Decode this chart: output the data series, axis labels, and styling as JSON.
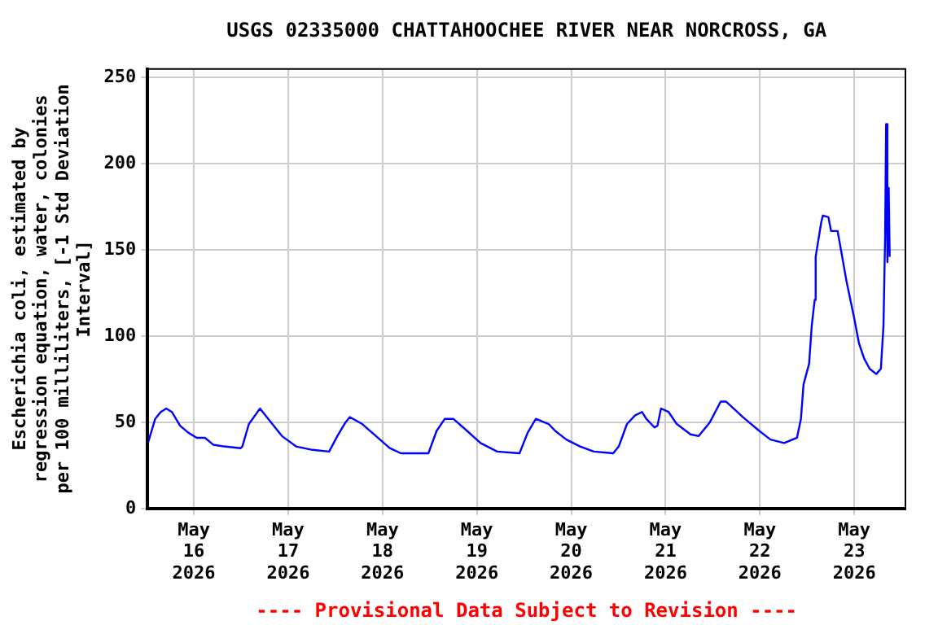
{
  "chart_data": {
    "type": "line",
    "title": "USGS 02335000 CHATTAHOOCHEE RIVER NEAR NORCROSS, GA",
    "ylabel": "Escherichia coli, estimated by regression equation, water, colonies per 100 milliliters, [-1 Std Deviation Interval]",
    "annotations": [
      "---- Provisional Data Subject to Revision ----"
    ],
    "x": [
      "2026-05-15T12:20",
      "2026-05-15T14:10",
      "2026-05-15T15:35",
      "2026-05-15T17:00",
      "2026-05-15T18:25",
      "2026-05-15T20:30",
      "2026-05-15T22:35",
      "2026-05-16T00:45",
      "2026-05-16T02:50",
      "2026-05-16T04:55",
      "2026-05-16T07:40",
      "2026-05-16T11:55",
      "2026-05-16T12:20",
      "2026-05-16T14:00",
      "2026-05-16T16:50",
      "2026-05-16T18:55",
      "2026-05-16T22:25",
      "2026-05-17T02:00",
      "2026-05-17T06:10",
      "2026-05-17T10:25",
      "2026-05-17T12:30",
      "2026-05-17T14:35",
      "2026-05-17T15:40",
      "2026-05-17T18:50",
      "2026-05-17T22:20",
      "2026-05-18T01:50",
      "2026-05-18T04:40",
      "2026-05-18T09:35",
      "2026-05-18T11:40",
      "2026-05-18T13:45",
      "2026-05-18T15:50",
      "2026-05-18T18:00",
      "2026-05-18T21:30",
      "2026-05-19T00:55",
      "2026-05-19T05:10",
      "2026-05-19T10:50",
      "2026-05-19T12:55",
      "2026-05-19T15:00",
      "2026-05-19T18:15",
      "2026-05-19T19:55",
      "2026-05-19T22:45",
      "2026-05-20T02:15",
      "2026-05-20T05:45",
      "2026-05-20T10:40",
      "2026-05-20T12:05",
      "2026-05-20T14:10",
      "2026-05-20T16:15",
      "2026-05-20T18:00",
      "2026-05-20T19:05",
      "2026-05-20T21:10",
      "2026-05-20T21:55",
      "2026-05-20T22:50",
      "2026-05-21T00:45",
      "2026-05-21T02:50",
      "2026-05-21T06:20",
      "2026-05-21T08:25",
      "2026-05-21T11:15",
      "2026-05-21T14:00",
      "2026-05-21T15:25",
      "2026-05-21T19:40",
      "2026-05-21T23:50",
      "2026-05-22T02:40",
      "2026-05-22T06:10",
      "2026-05-22T09:25",
      "2026-05-22T10:25",
      "2026-05-22T11:05",
      "2026-05-22T12:30",
      "2026-05-22T13:10",
      "2026-05-22T13:55",
      "2026-05-22T14:10",
      "2026-05-22T14:35",
      "2026-05-22T15:35",
      "2026-05-22T16:00",
      "2026-05-22T17:25",
      "2026-05-22T18:05",
      "2026-05-22T19:45",
      "2026-05-22T20:55",
      "2026-05-22T22:00",
      "2026-05-22T23:00",
      "2026-05-23T00:00",
      "2026-05-23T01:10",
      "2026-05-23T02:30",
      "2026-05-23T03:55",
      "2026-05-23T05:35",
      "2026-05-23T06:45",
      "2026-05-23T07:25",
      "2026-05-23T07:50",
      "2026-05-23T08:05",
      "2026-05-23T08:25",
      "2026-05-23T08:45",
      "2026-05-23T09:00"
    ],
    "series": [
      {
        "color": "#0000ff",
        "values": [
          38,
          52,
          56,
          58,
          56,
          48,
          44,
          41,
          41,
          37,
          36,
          35,
          36,
          49,
          58,
          52,
          42,
          36,
          34,
          33,
          42,
          50,
          53,
          49,
          42,
          35,
          32,
          32,
          32,
          45,
          52,
          52,
          45,
          38,
          33,
          32,
          44,
          52,
          49,
          45,
          40,
          36,
          33,
          32,
          36,
          49,
          54,
          56,
          52,
          47,
          48,
          58,
          56,
          49,
          43,
          42,
          50,
          62,
          62,
          53,
          45,
          40,
          38,
          41,
          52,
          72,
          84,
          106,
          121,
          146,
          152,
          166,
          170,
          169,
          161,
          161,
          146,
          132,
          121,
          110,
          96,
          87,
          81,
          78,
          81,
          106,
          158,
          223,
          143,
          186,
          146
        ]
      }
    ],
    "xlim": [
      "2026-05-15T12:15",
      "2026-05-23T13:00"
    ],
    "xticks": [
      {
        "value": "2026-05-16",
        "label": "May 16 2026"
      },
      {
        "value": "2026-05-17",
        "label": "May 17 2026"
      },
      {
        "value": "2026-05-18",
        "label": "May 18 2026"
      },
      {
        "value": "2026-05-19",
        "label": "May 19 2026"
      },
      {
        "value": "2026-05-20",
        "label": "May 20 2026"
      },
      {
        "value": "2026-05-21",
        "label": "May 21 2026"
      },
      {
        "value": "2026-05-22",
        "label": "May 22 2026"
      },
      {
        "value": "2026-05-23",
        "label": "May 23 2026"
      }
    ],
    "ylim": [
      0,
      255
    ],
    "yticks": [
      0,
      50,
      100,
      150,
      200,
      250
    ],
    "grid": true,
    "legend": false,
    "marker": "none",
    "line_style": "solid"
  }
}
